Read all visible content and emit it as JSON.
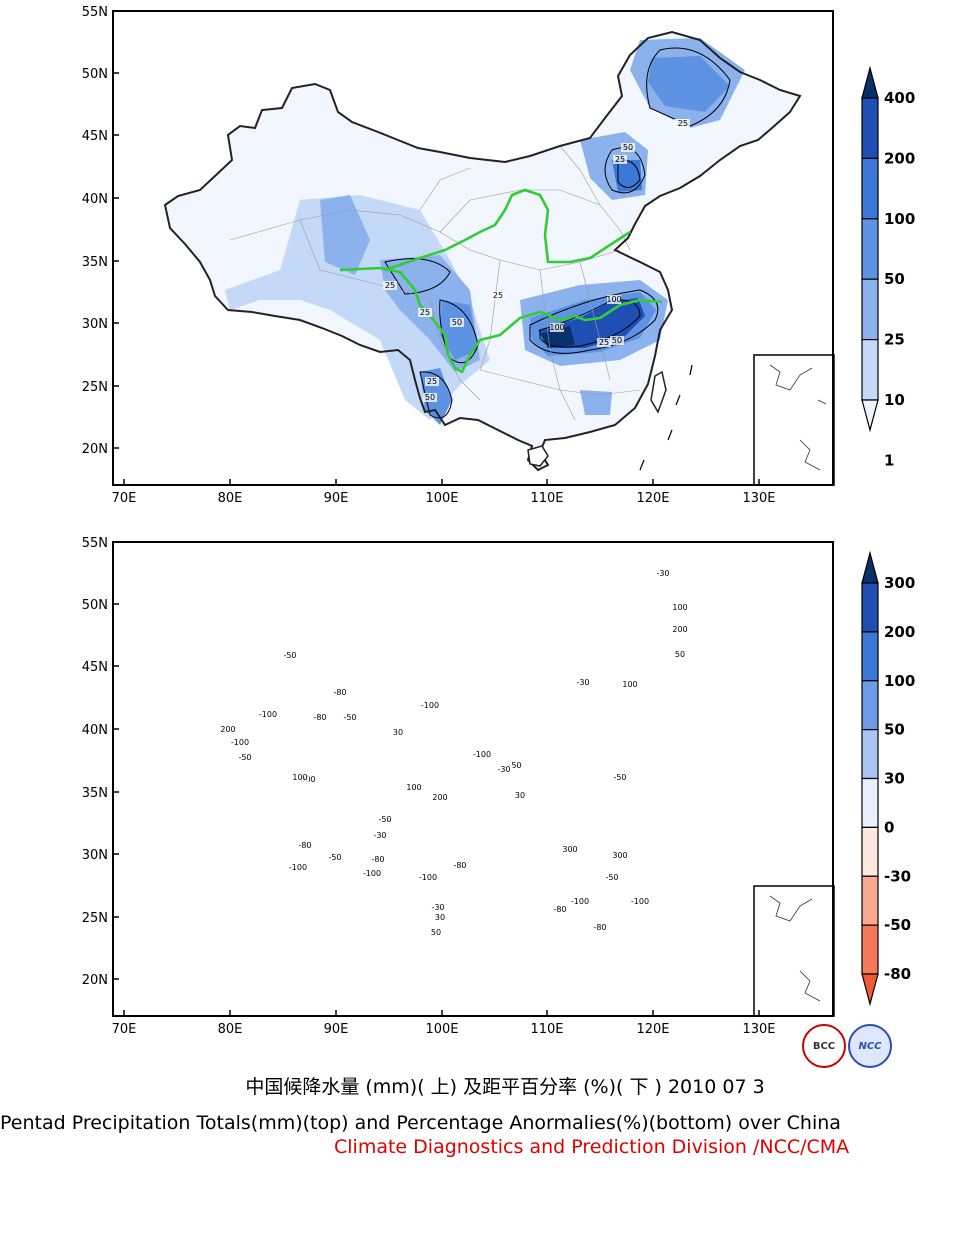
{
  "maps": [
    {
      "name": "precipitation-totals-map",
      "lat_labels": [
        "55N",
        "50N",
        "45N",
        "40N",
        "35N",
        "30N",
        "25N",
        "20N"
      ],
      "lon_labels": [
        "70E",
        "80E",
        "90E",
        "100E",
        "110E",
        "120E",
        "130E"
      ],
      "colorbar": {
        "labels": [
          "400",
          "200",
          "100",
          "50",
          "25",
          "10",
          "1"
        ],
        "colors": [
          "#08306b",
          "#1f4fb5",
          "#3b78d8",
          "#5e93e4",
          "#8cb2ee",
          "#c4d8f7",
          "#eef3fd"
        ]
      },
      "contour_labels": [
        "25",
        "50",
        "25",
        "25",
        "50",
        "25",
        "100",
        "100",
        "25",
        "50",
        "25",
        "50",
        "25",
        "25"
      ]
    },
    {
      "name": "percentage-anomalies-map",
      "lat_labels": [
        "55N",
        "50N",
        "45N",
        "40N",
        "35N",
        "30N",
        "25N",
        "20N"
      ],
      "lon_labels": [
        "70E",
        "80E",
        "90E",
        "100E",
        "110E",
        "120E",
        "130E"
      ],
      "colorbar": {
        "labels": [
          "300",
          "200",
          "100",
          "50",
          "30",
          "0",
          "-30",
          "-50",
          "-80"
        ],
        "colors": [
          "#08306b",
          "#1f4fb5",
          "#3b78d8",
          "#6e9be6",
          "#a9c6f2",
          "#e9f0fb",
          "#fde8e0",
          "#f8a98f",
          "#f47a5a",
          "#ee5b38"
        ]
      },
      "contour_labels": [
        "-30",
        "100",
        "200",
        "50",
        "-100",
        "-100",
        "-50",
        "-80",
        "-80",
        "-50",
        "-50",
        "-100",
        "30",
        "100",
        "-30",
        "200",
        "100",
        "-100",
        "-50",
        "30",
        "-30",
        "-100",
        "200",
        "300",
        "100",
        "-50",
        "-30",
        "-80",
        "-100",
        "-80",
        "-50",
        "-100",
        "-80",
        "-30",
        "300",
        "300",
        "-50",
        "-100",
        "-80",
        "-100",
        "-80",
        "50",
        "30",
        "-50"
      ]
    }
  ],
  "caption": {
    "chinese_title": "中国候降水量 (mm)( 上) 及距平百分率 (%)( 下 ) 2010 07 3",
    "english_title": "Pentad Precipitation Totals(mm)(top) and Percentage Anormalies(%)(bottom) over China",
    "credit": "Climate Diagnostics and Prediction Division /NCC/CMA"
  },
  "logos": {
    "bcc_text": "BCC",
    "ncc_text": "NCC"
  }
}
